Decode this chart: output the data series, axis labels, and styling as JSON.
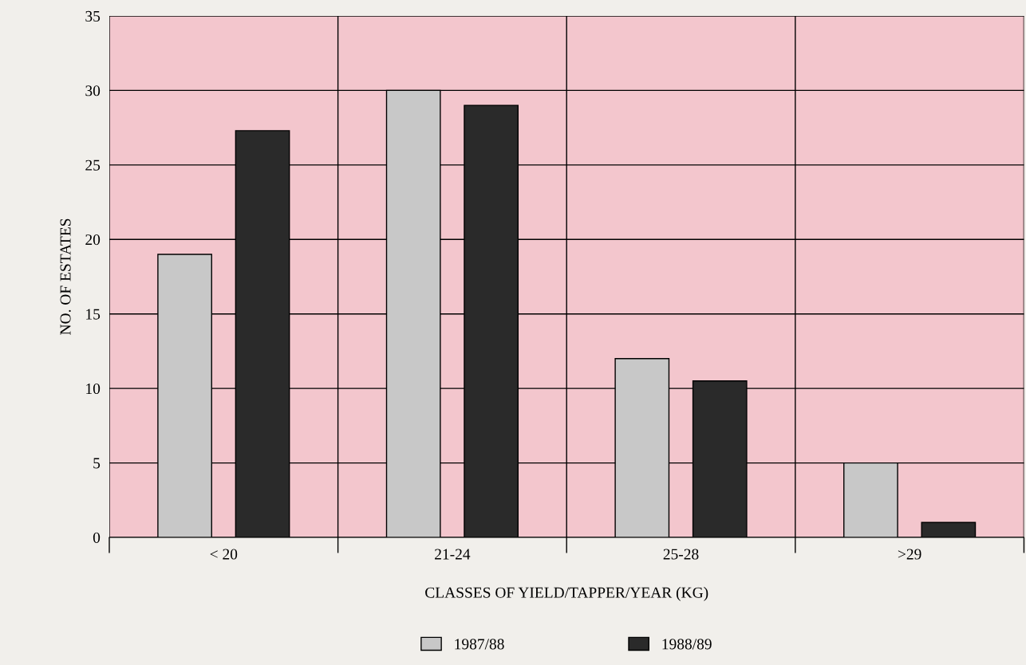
{
  "chart_data": {
    "type": "bar",
    "xlabel": "CLASSES OF YIELD/TAPPER/YEAR (KG)",
    "ylabel": "NO. OF ESTATES",
    "categories": [
      "< 20",
      "21-24",
      "25-28",
      ">29"
    ],
    "series": [
      {
        "name": "1987/88",
        "color": "#c8c8c8",
        "values": [
          19,
          30,
          12,
          5
        ]
      },
      {
        "name": "1988/89",
        "color": "#2a2a2a",
        "values": [
          27.3,
          29,
          10.5,
          1
        ]
      }
    ],
    "ylim": [
      0,
      35
    ],
    "yticks": [
      0,
      5,
      10,
      15,
      20,
      25,
      30,
      35
    ],
    "grid": true,
    "legend": "bottom"
  }
}
